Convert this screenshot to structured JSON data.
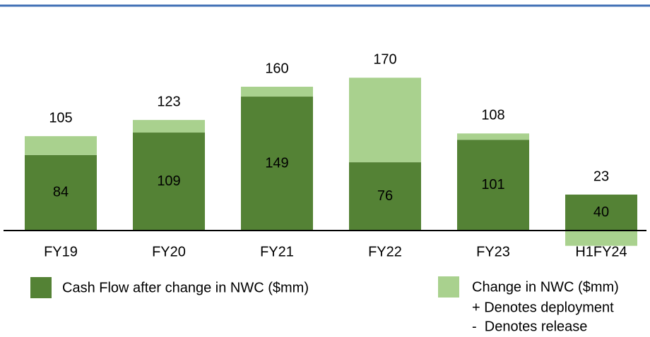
{
  "chart_data": {
    "type": "stacked_bar",
    "categories": [
      "FY19",
      "FY20",
      "FY21",
      "FY22",
      "FY23",
      "H1FY24"
    ],
    "series": [
      {
        "name": "Cash Flow after change in NWC ($mm)",
        "color": "#548235",
        "values": [
          84,
          109,
          149,
          76,
          101,
          40
        ]
      },
      {
        "name": "Change in NWC ($mm)",
        "color": "#a9d18e",
        "values": [
          21,
          14,
          11,
          94,
          7,
          -17
        ]
      }
    ],
    "totals": [
      105,
      123,
      160,
      170,
      108,
      23
    ],
    "legend_notes": [
      "+ Denotes deployment",
      "-  Denotes release"
    ],
    "ylim": [
      -20,
      220
    ]
  }
}
